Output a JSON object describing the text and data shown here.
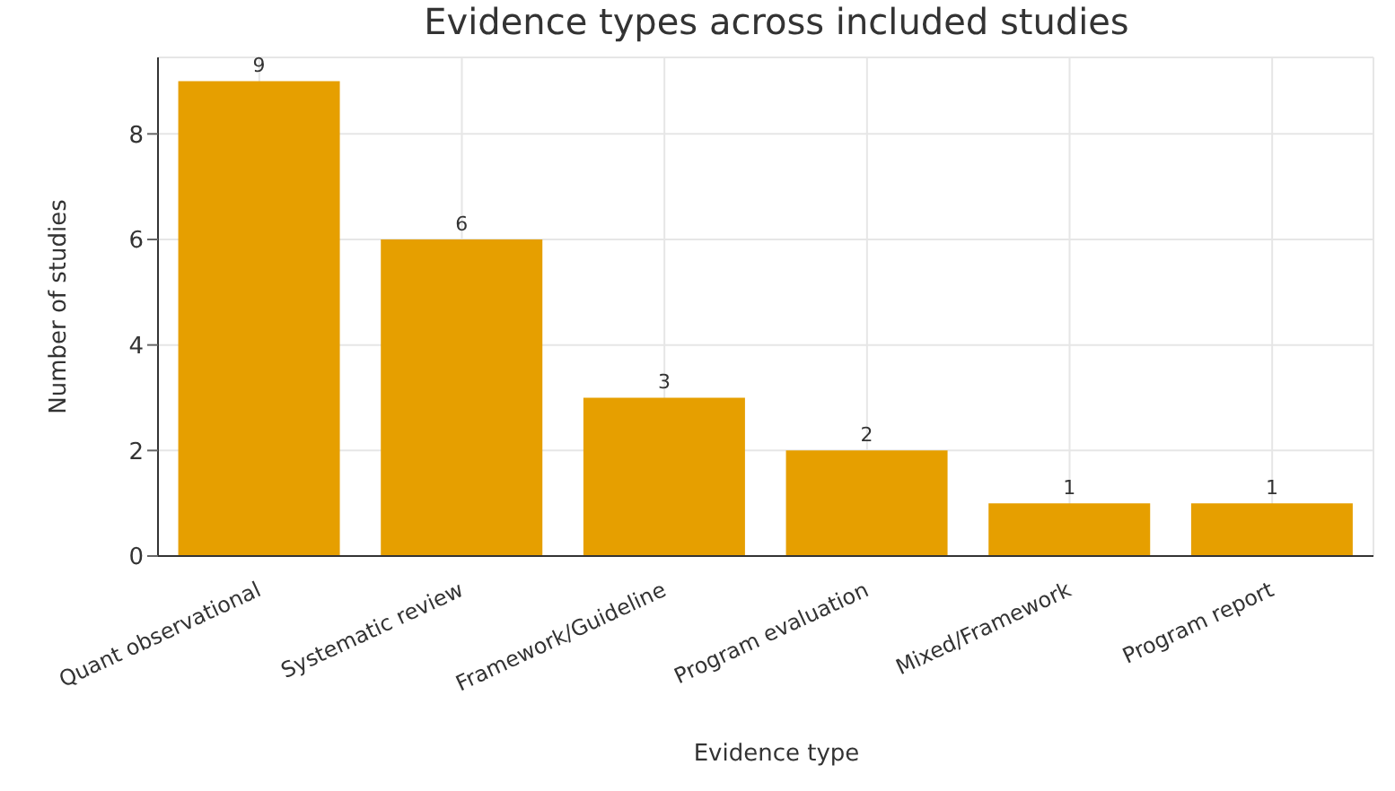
{
  "chart_data": {
    "type": "bar",
    "title": "Evidence types across included studies",
    "xlabel": "Evidence type",
    "ylabel": "Number of studies",
    "categories": [
      "Quant observational",
      "Systematic review",
      "Framework/Guideline",
      "Program evaluation",
      "Mixed/Framework",
      "Program report"
    ],
    "values": [
      9,
      6,
      3,
      2,
      1,
      1
    ],
    "color": "#e69f00",
    "ylim": [
      0,
      9.45
    ],
    "yticks": [
      0,
      2,
      4,
      6,
      8
    ],
    "grid": true,
    "data_labels": true
  }
}
